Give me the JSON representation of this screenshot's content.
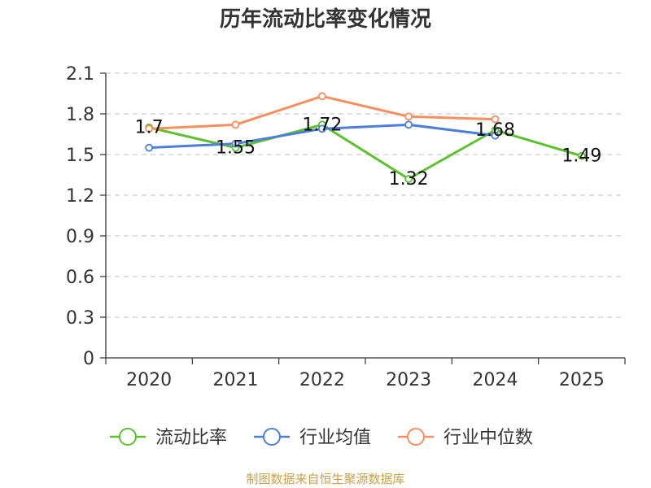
{
  "chart_data": {
    "type": "line",
    "title": "历年流动比率变化情况",
    "categories": [
      "2020",
      "2021",
      "2022",
      "2023",
      "2024",
      "2025"
    ],
    "ylim": [
      0,
      2.1
    ],
    "yticks": [
      "0",
      "0.3",
      "0.6",
      "0.9",
      "1.2",
      "1.5",
      "1.8",
      "2.1"
    ],
    "grid": true,
    "legend_position": "bottom",
    "series": [
      {
        "name": "流动比率",
        "color": "#5cc12f",
        "values": [
          1.7,
          1.55,
          1.72,
          1.32,
          1.68,
          1.49
        ],
        "labels": [
          "1.7",
          "1.55",
          "1.72",
          "1.32",
          "1.68",
          "1.49"
        ]
      },
      {
        "name": "行业均值",
        "color": "#4e7fd8",
        "values": [
          1.55,
          1.58,
          1.69,
          1.72,
          1.64,
          null
        ]
      },
      {
        "name": "行业中位数",
        "color": "#f78f5e",
        "values": [
          1.69,
          1.72,
          1.93,
          1.78,
          1.76,
          null
        ]
      }
    ],
    "source": "制图数据来自恒生聚源数据库"
  }
}
